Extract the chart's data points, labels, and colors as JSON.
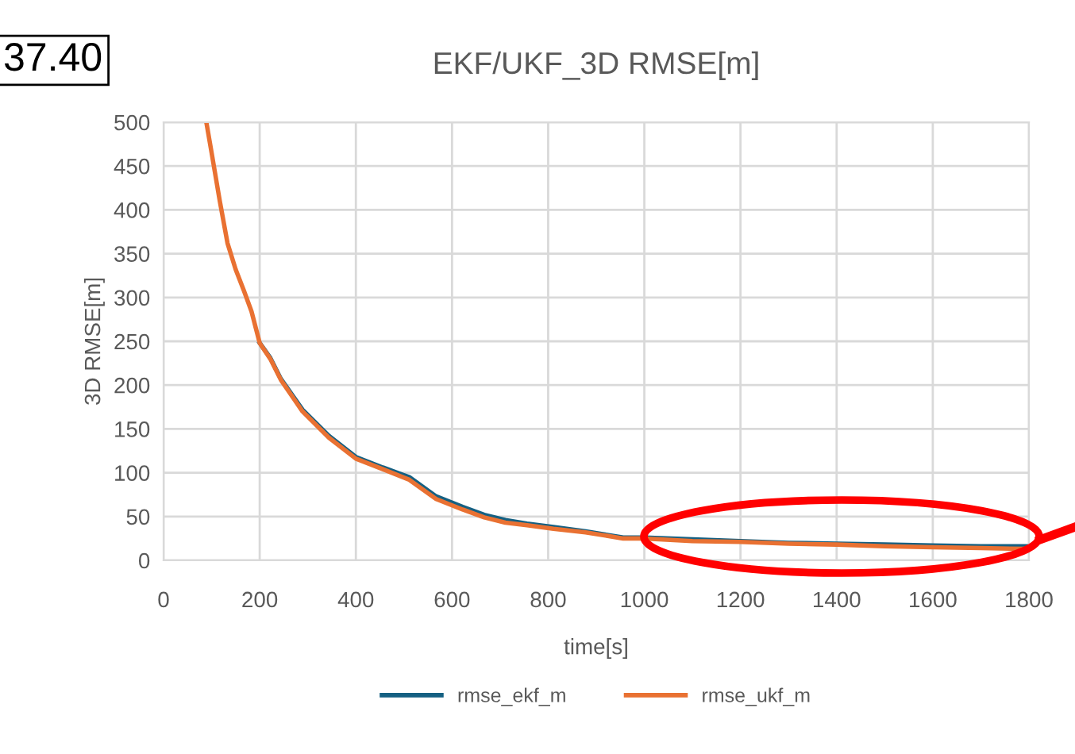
{
  "chart_data": {
    "type": "line",
    "title": "EKF/UKF_3D RMSE[m]",
    "xlabel": "time[s]",
    "ylabel": "3D RMSE[m]",
    "x": [
      89,
      100,
      117,
      133,
      150,
      167,
      183,
      200,
      222,
      244,
      289,
      344,
      400,
      456,
      511,
      567,
      622,
      667,
      711,
      756,
      811,
      878,
      956,
      1000,
      1100,
      1200,
      1300,
      1400,
      1500,
      1600,
      1700,
      1800
    ],
    "series": [
      {
        "name": "rmse_ekf_m",
        "color": "#156082",
        "values": [
          null,
          null,
          null,
          null,
          null,
          null,
          null,
          248,
          231,
          207,
          172,
          142,
          118,
          106,
          95,
          73,
          61,
          52,
          46,
          42,
          38,
          33,
          26,
          26,
          24,
          22,
          20,
          19,
          18,
          17,
          16,
          16
        ]
      },
      {
        "name": "rmse_ukf_m",
        "color": "#e97132",
        "values": [
          500,
          465,
          410,
          362,
          332,
          308,
          284,
          248,
          230,
          206,
          170,
          140,
          116,
          104,
          92,
          70,
          58,
          49,
          43,
          40,
          36,
          32,
          25,
          25,
          22,
          21,
          19,
          18,
          16,
          15,
          14,
          13
        ]
      }
    ],
    "xlim": [
      0,
      1800
    ],
    "xticks": [
      0,
      200,
      400,
      600,
      800,
      1000,
      1200,
      1400,
      1600,
      1800
    ],
    "ylim": [
      0,
      500
    ],
    "yticks": [
      0,
      50,
      100,
      150,
      200,
      250,
      300,
      350,
      400,
      450,
      500
    ],
    "grid": true,
    "legend": "bottom",
    "marker": "none",
    "line_style": "solid",
    "annotations": [
      "37.40"
    ]
  }
}
